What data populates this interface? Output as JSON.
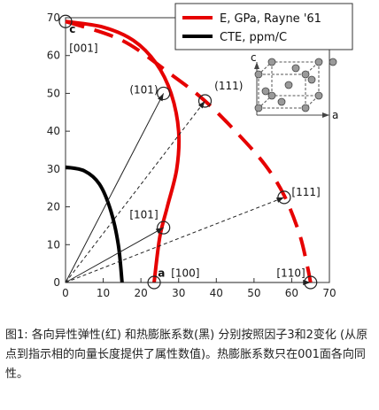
{
  "caption": "图1: 各向异性弹性(红) 和热膨胀系数(黑) 分别按照因子3和2变化 (从原点到指示相的向量长度提供了属性数值)。热膨胀系数只在001面各向同性。",
  "chart_data": {
    "type": "line",
    "xlim": [
      0,
      70
    ],
    "ylim": [
      0,
      70
    ],
    "x_ticks": [
      0,
      10,
      20,
      30,
      40,
      50,
      60,
      70
    ],
    "y_ticks": [
      0,
      10,
      20,
      30,
      40,
      50,
      60,
      70
    ],
    "legend_position": "top-right",
    "series": [
      {
        "name": "E, GPa, Rayne '61",
        "color": "#e60000",
        "style": "solid",
        "points": [
          [
            0,
            69
          ],
          [
            10,
            67.5
          ],
          [
            18,
            64
          ],
          [
            24,
            58
          ],
          [
            28,
            50
          ],
          [
            30,
            40
          ],
          [
            29.5,
            30
          ],
          [
            27,
            20
          ],
          [
            25,
            12
          ],
          [
            23.5,
            0
          ]
        ]
      },
      {
        "name": "",
        "color": "#e60000",
        "style": "dashed",
        "points": [
          [
            0,
            69
          ],
          [
            15,
            64
          ],
          [
            28,
            55
          ],
          [
            37,
            48
          ],
          [
            46,
            39
          ],
          [
            53,
            31
          ],
          [
            58,
            23
          ],
          [
            62,
            13
          ],
          [
            64,
            5
          ],
          [
            65,
            0
          ]
        ]
      },
      {
        "name": "CTE, ppm/C",
        "color": "#000000",
        "style": "solid",
        "points": [
          [
            0,
            30.5
          ],
          [
            5,
            29.5
          ],
          [
            9,
            26
          ],
          [
            12,
            19
          ],
          [
            14,
            10
          ],
          [
            15,
            0
          ]
        ]
      }
    ],
    "vectors": [
      {
        "to": [
          26,
          50
        ],
        "style": "solid"
      },
      {
        "to": [
          26,
          14.5
        ],
        "style": "solid"
      },
      {
        "to": [
          37,
          48
        ],
        "style": "dashed"
      },
      {
        "to": [
          58,
          22.5
        ],
        "style": "dashed"
      },
      {
        "to": [
          65,
          0
        ],
        "style": "solid"
      }
    ],
    "circled_points": [
      [
        0,
        69
      ],
      [
        26,
        50
      ],
      [
        26,
        14.5
      ],
      [
        37,
        48
      ],
      [
        58,
        22.5
      ],
      [
        23.5,
        0
      ],
      [
        65,
        0
      ]
    ],
    "annotations": [
      {
        "text": "c",
        "at": [
          1,
          66
        ],
        "color": "#1a33cc",
        "bold": true
      },
      {
        "text": "[001]",
        "at": [
          1,
          61
        ],
        "color": "#111111",
        "bold": false
      },
      {
        "text": "(101)",
        "at": [
          17,
          50
        ],
        "color": "#111111",
        "bold": false
      },
      {
        "text": "(111)",
        "at": [
          39.5,
          51
        ],
        "color": "#111111",
        "bold": false
      },
      {
        "text": "[101]",
        "at": [
          17,
          17
        ],
        "color": "#111111",
        "bold": false
      },
      {
        "text": "[111]",
        "at": [
          60,
          23
        ],
        "color": "#111111",
        "bold": false
      },
      {
        "text": "a",
        "at": [
          24.5,
          1.5
        ],
        "color": "#1a33cc",
        "bold": true
      },
      {
        "text": "[100]",
        "at": [
          28,
          1.5
        ],
        "color": "#111111",
        "bold": false
      },
      {
        "text": "[110]",
        "at": [
          56,
          1.5
        ],
        "color": "#111111",
        "bold": false
      }
    ],
    "inset": {
      "axis_labels": [
        "c",
        "a"
      ]
    }
  }
}
